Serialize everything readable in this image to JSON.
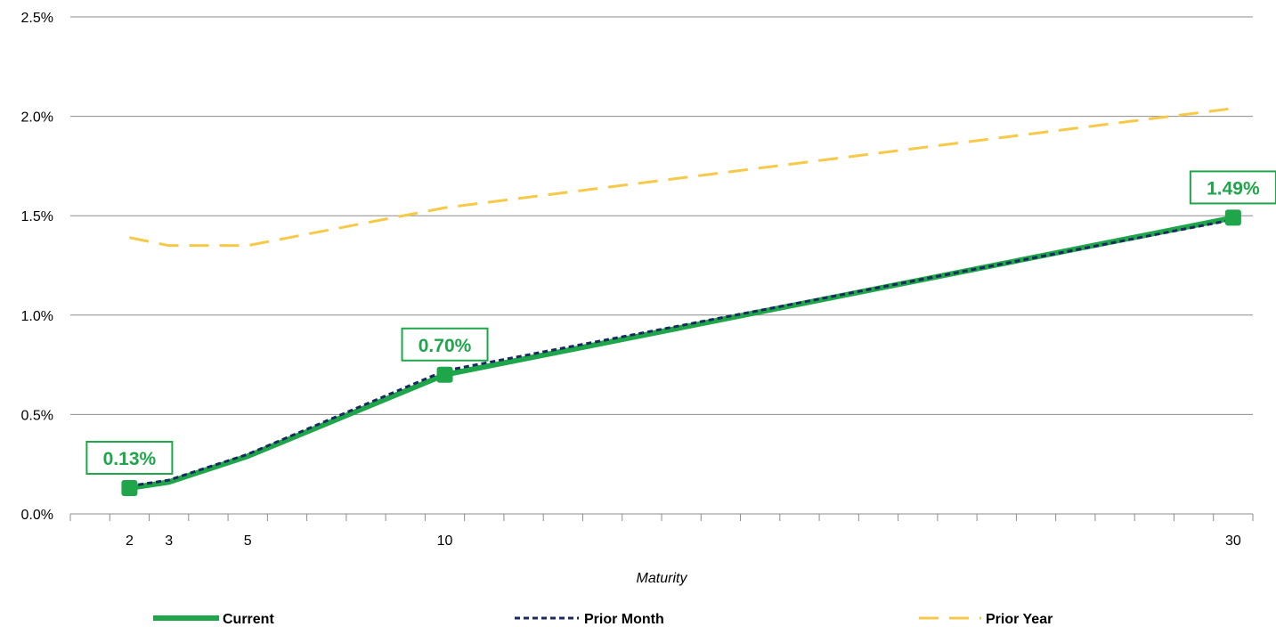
{
  "chart_data": {
    "type": "line",
    "title": "",
    "xlabel": "Maturity",
    "ylabel": "",
    "x_ticks": [
      2,
      3,
      5,
      10,
      30
    ],
    "x_range": [
      0.5,
      30.5
    ],
    "ylim": [
      0,
      0.025
    ],
    "y_ticks": [
      {
        "value": 0.0,
        "label": "0.0%"
      },
      {
        "value": 0.005,
        "label": "0.5%"
      },
      {
        "value": 0.01,
        "label": "1.0%"
      },
      {
        "value": 0.015,
        "label": "1.5%"
      },
      {
        "value": 0.02,
        "label": "2.0%"
      },
      {
        "value": 0.025,
        "label": "2.5%"
      }
    ],
    "grid": true,
    "legend_position": "bottom",
    "series": [
      {
        "name": "Current",
        "color": "#1fa64a",
        "style": "solid",
        "x": [
          2,
          3,
          5,
          10,
          30
        ],
        "y": [
          0.0013,
          0.0016,
          0.0029,
          0.007,
          0.0149
        ]
      },
      {
        "name": "Prior Month",
        "color": "#1a2a5e",
        "style": "dashed",
        "x": [
          2,
          3,
          5,
          10,
          30
        ],
        "y": [
          0.0014,
          0.0017,
          0.003,
          0.0072,
          0.0148
        ]
      },
      {
        "name": "Prior Year",
        "color": "#f7c948",
        "style": "longdash",
        "x": [
          2,
          3,
          5,
          10,
          30
        ],
        "y": [
          0.0139,
          0.0135,
          0.0135,
          0.0154,
          0.0204
        ]
      }
    ],
    "data_labels": [
      {
        "series": "Current",
        "x": 2,
        "y": 0.0013,
        "text": "0.13%"
      },
      {
        "series": "Current",
        "x": 10,
        "y": 0.007,
        "text": "0.70%"
      },
      {
        "series": "Current",
        "x": 30,
        "y": 0.0149,
        "text": "1.49%"
      }
    ]
  }
}
